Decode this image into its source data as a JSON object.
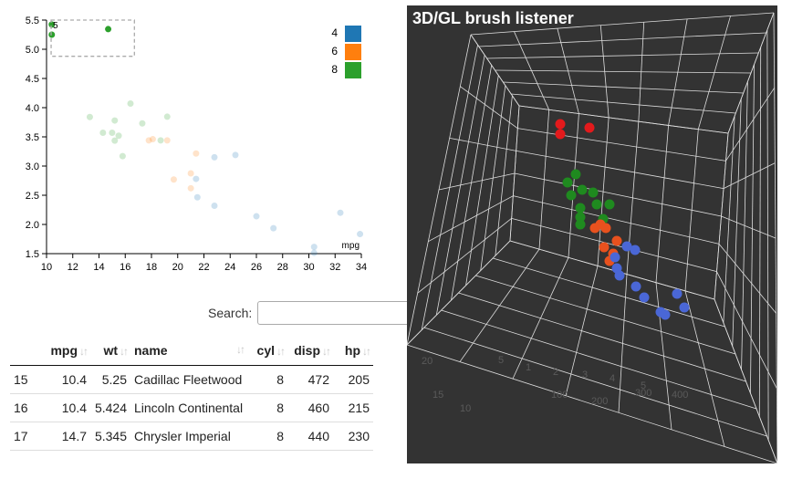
{
  "scatter": {
    "xlabel": "mpg",
    "x_ticks": [
      "10",
      "12",
      "14",
      "16",
      "18",
      "20",
      "22",
      "24",
      "26",
      "28",
      "30",
      "32",
      "34"
    ],
    "y_ticks": [
      "1.5",
      "2.0",
      "2.5",
      "3.0",
      "3.5",
      "4.0",
      "4.5",
      "5.0",
      "5.5"
    ],
    "legend": [
      {
        "label": "4",
        "color": "#1f77b4"
      },
      {
        "label": "6",
        "color": "#ff7f0e"
      },
      {
        "label": "8",
        "color": "#2ca02c"
      }
    ],
    "brush_label": "5"
  },
  "chart_data": {
    "type": "scatter",
    "xlabel": "mpg",
    "ylabel": "",
    "xlim": [
      10,
      34
    ],
    "ylim": [
      1.5,
      5.5
    ],
    "series": [
      {
        "name": "4",
        "color": "#1f77b4",
        "x": [
          22.8,
          24.4,
          22.8,
          32.4,
          30.4,
          33.9,
          21.5,
          27.3,
          26.0,
          30.4,
          21.4
        ],
        "y": [
          2.32,
          3.19,
          3.15,
          2.2,
          1.615,
          1.835,
          2.465,
          1.935,
          2.14,
          1.513,
          2.78
        ]
      },
      {
        "name": "6",
        "color": "#ff7f0e",
        "x": [
          21.0,
          21.0,
          21.4,
          18.1,
          19.2,
          17.8,
          19.7
        ],
        "y": [
          2.62,
          2.875,
          3.215,
          3.46,
          3.44,
          3.44,
          2.77
        ]
      },
      {
        "name": "8",
        "color": "#2ca02c",
        "x": [
          18.7,
          14.3,
          16.4,
          17.3,
          15.2,
          10.4,
          10.4,
          14.7,
          15.5,
          15.2,
          13.3,
          19.2,
          15.8,
          15.0
        ],
        "y": [
          3.44,
          3.57,
          4.07,
          3.73,
          3.78,
          5.25,
          5.424,
          5.345,
          3.52,
          3.435,
          3.84,
          3.845,
          3.17,
          3.57
        ]
      }
    ],
    "selected": [
      [
        10.4,
        5.25
      ],
      [
        10.4,
        5.424
      ],
      [
        14.7,
        5.345
      ]
    ]
  },
  "search": {
    "label": "Search:",
    "value": "",
    "placeholder": ""
  },
  "table": {
    "columns": [
      "",
      "mpg",
      "wt",
      "name",
      "cyl",
      "disp",
      "hp"
    ],
    "rows": [
      [
        "15",
        "10.4",
        "5.25",
        "Cadillac Fleetwood",
        "8",
        "472",
        "205"
      ],
      [
        "16",
        "10.4",
        "5.424",
        "Lincoln Continental",
        "8",
        "460",
        "215"
      ],
      [
        "17",
        "14.7",
        "5.345",
        "Chrysler Imperial",
        "8",
        "440",
        "230"
      ]
    ]
  },
  "gl": {
    "title": "3D/GL brush listener",
    "axis_labels": [
      "20",
      "15",
      "10",
      "5",
      "1",
      "2",
      "3",
      "4",
      "5",
      "100",
      "200",
      "300",
      "400"
    ],
    "point_colors": {
      "selected": "#e31a1c",
      "cyl8": "#1f8a1f",
      "cyl6": "#e8511e",
      "cyl4": "#4a67d6"
    }
  }
}
